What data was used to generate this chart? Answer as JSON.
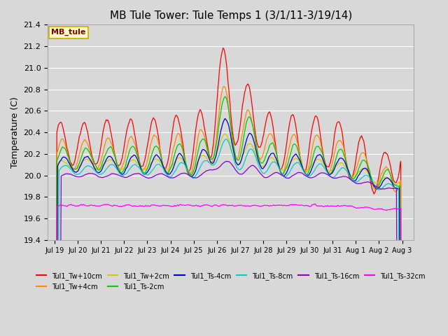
{
  "title": "MB Tule Tower: Tule Temps 1 (3/1/11-3/19/14)",
  "ylabel": "Temperature (C)",
  "ylim": [
    19.4,
    21.4
  ],
  "plot_bg_color": "#d8d8d8",
  "legend_box_color": "#ffffcc",
  "legend_box_edge": "#ccaa00",
  "legend_box_text": "#880000",
  "legend_box_label": "MB_tule",
  "series": [
    {
      "label": "Tul1_Tw+10cm",
      "color": "#ff0000"
    },
    {
      "label": "Tul1_Tw+4cm",
      "color": "#ff8800"
    },
    {
      "label": "Tul1_Tw+2cm",
      "color": "#cccc00"
    },
    {
      "label": "Tul1_Ts-2cm",
      "color": "#00cc00"
    },
    {
      "label": "Tul1_Ts-4cm",
      "color": "#0000cc"
    },
    {
      "label": "Tul1_Ts-8cm",
      "color": "#00cccc"
    },
    {
      "label": "Tul1_Ts-16cm",
      "color": "#8800cc"
    },
    {
      "label": "Tul1_Ts-32cm",
      "color": "#ff00ff"
    }
  ],
  "xtick_labels": [
    "Jul 19",
    "Jul 20",
    "Jul 21",
    "Jul 22",
    "Jul 23",
    "Jul 24",
    "Jul 25",
    "Jul 26",
    "Jul 27",
    "Jul 28",
    "Jul 29",
    "Jul 30",
    "Jul 31",
    "Aug 1",
    "Aug 2",
    "Aug 3"
  ],
  "xtick_pos": [
    0,
    1,
    2,
    3,
    4,
    5,
    6,
    7,
    8,
    9,
    10,
    11,
    12,
    13,
    14,
    15
  ],
  "ytick_vals": [
    19.4,
    19.6,
    19.8,
    20.0,
    20.2,
    20.4,
    20.6,
    20.8,
    21.0,
    21.2,
    21.4
  ],
  "ytick_labels": [
    "19.4",
    "19.6",
    "19.8",
    "20.0",
    "20.2",
    "20.4",
    "20.6",
    "20.8",
    "21.0",
    "21.2",
    "21.4"
  ],
  "n_points": 480
}
